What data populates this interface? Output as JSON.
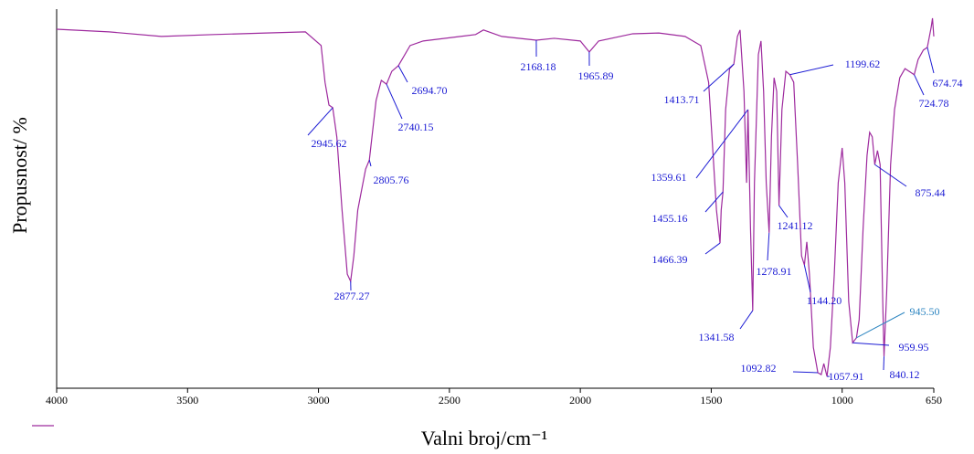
{
  "chart_data": {
    "type": "line",
    "xlabel": "Valni broj/cm⁻¹",
    "ylabel": "Propusnost/ %",
    "color": "#9e2a9e",
    "annotation_color": "#1c1cd4",
    "xlim": [
      4000,
      650
    ],
    "ylim": [
      0,
      100
    ],
    "xticks": [
      4000,
      3500,
      3000,
      2500,
      2000,
      1500,
      1000,
      650
    ],
    "x": [
      4000,
      3800,
      3600,
      3400,
      3200,
      3050,
      2990,
      2975,
      2960,
      2945.62,
      2930,
      2910,
      2890,
      2877.27,
      2865,
      2850,
      2820,
      2805.76,
      2780,
      2760,
      2740.15,
      2720,
      2694.7,
      2650,
      2600,
      2400,
      2370,
      2300,
      2168.18,
      2100,
      2000,
      1965.89,
      1930,
      1800,
      1700,
      1600,
      1540,
      1510,
      1495,
      1480,
      1466.39,
      1462,
      1455.16,
      1445,
      1430,
      1413.71,
      1400,
      1390,
      1375,
      1365,
      1359.61,
      1350,
      1341.58,
      1335,
      1320,
      1310,
      1300,
      1290,
      1278.91,
      1270,
      1260,
      1250,
      1241.12,
      1230,
      1215,
      1199.62,
      1185,
      1170,
      1155,
      1144.2,
      1135,
      1125,
      1110,
      1092.82,
      1080,
      1070,
      1057.91,
      1045,
      1030,
      1015,
      1000,
      990,
      975,
      959.95,
      945.5,
      935,
      920,
      905,
      895,
      885,
      875.44,
      865,
      855,
      845,
      840.12,
      830,
      815,
      800,
      780,
      760,
      724.78,
      710,
      690,
      674.74,
      660,
      655,
      650
    ],
    "values": [
      94.7,
      94.0,
      92.8,
      93.3,
      93.7,
      94.0,
      90.4,
      80.7,
      74.7,
      74.0,
      66.3,
      47.0,
      30.1,
      28.2,
      34.9,
      47.0,
      57.8,
      60.2,
      75.9,
      81.2,
      80.2,
      83.6,
      85.1,
      90.4,
      91.6,
      93.3,
      94.5,
      92.8,
      91.8,
      92.3,
      91.6,
      88.7,
      91.6,
      93.5,
      93.7,
      92.8,
      90.4,
      80.7,
      63.9,
      47.0,
      38.3,
      47.0,
      51.8,
      73.5,
      84.3,
      85.5,
      92.8,
      94.5,
      78.3,
      54.2,
      73.5,
      42.2,
      20.5,
      54.2,
      88.0,
      91.6,
      78.3,
      54.2,
      41.0,
      66.3,
      81.9,
      78.3,
      48.2,
      73.5,
      83.6,
      82.7,
      80.7,
      59.0,
      34.9,
      32.5,
      38.6,
      30.1,
      10.8,
      4.1,
      3.6,
      6.5,
      3.1,
      10.8,
      30.1,
      54.2,
      63.4,
      54.2,
      22.9,
      12.0,
      13.3,
      18.1,
      42.2,
      61.4,
      67.5,
      66.3,
      59.0,
      62.7,
      59.0,
      22.9,
      8.4,
      25.3,
      59.0,
      73.5,
      81.9,
      84.3,
      82.7,
      86.7,
      89.2,
      89.9,
      95.2,
      97.6,
      92.8
    ],
    "annotations": [
      {
        "value": 2945.62,
        "label": "2945.62"
      },
      {
        "value": 2877.27,
        "label": "2877.27"
      },
      {
        "value": 2805.76,
        "label": "2805.76"
      },
      {
        "value": 2740.15,
        "label": "2740.15"
      },
      {
        "value": 2694.7,
        "label": "2694.70"
      },
      {
        "value": 2168.18,
        "label": "2168.18"
      },
      {
        "value": 1965.89,
        "label": "1965.89"
      },
      {
        "value": 1413.71,
        "label": "1413.71"
      },
      {
        "value": 1359.61,
        "label": "1359.61"
      },
      {
        "value": 1455.16,
        "label": "1455.16"
      },
      {
        "value": 1466.39,
        "label": "1466.39"
      },
      {
        "value": 1341.58,
        "label": "1341.58"
      },
      {
        "value": 1278.91,
        "label": "1278.91"
      },
      {
        "value": 1241.12,
        "label": "1241.12"
      },
      {
        "value": 1199.62,
        "label": "1199.62"
      },
      {
        "value": 1144.2,
        "label": "1144.20"
      },
      {
        "value": 1092.82,
        "label": "1092.82"
      },
      {
        "value": 1057.91,
        "label": "1057.91"
      },
      {
        "value": 945.5,
        "label": "945.50",
        "color": "#2e86c1"
      },
      {
        "value": 959.95,
        "label": "959.95"
      },
      {
        "value": 840.12,
        "label": "840.12"
      },
      {
        "value": 875.44,
        "label": "875.44"
      },
      {
        "value": 724.78,
        "label": "724.78"
      },
      {
        "value": 674.74,
        "label": "674.74"
      }
    ]
  }
}
